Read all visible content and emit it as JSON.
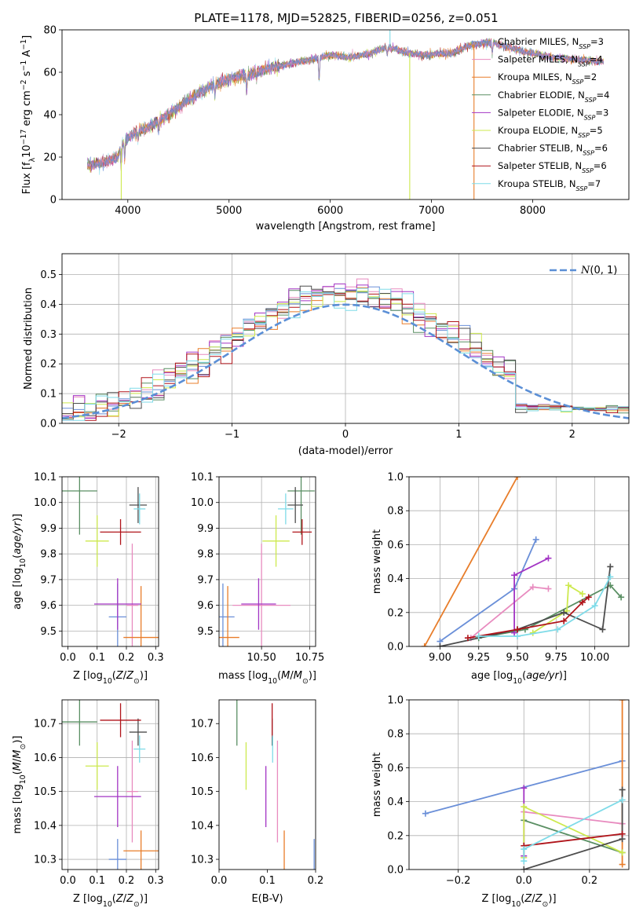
{
  "figure": {
    "title": "PLATE=1178, MJD=52825, FIBERID=0256, z=0.051"
  },
  "models": [
    {
      "name": "Chabrier MILES, N_SSP=3",
      "label_main": "Chabrier MILES, N",
      "sub": "SSP",
      "label_tail": "=3",
      "color": "#6a8fd8"
    },
    {
      "name": "Salpeter MILES, N_SSP=4",
      "label_main": "Salpeter MILES, N",
      "sub": "SSP",
      "label_tail": "=4",
      "color": "#e88bbf"
    },
    {
      "name": "Kroupa MILES, N_SSP=2",
      "label_main": "Kroupa MILES, N",
      "sub": "SSP",
      "label_tail": "=2",
      "color": "#e87d2a"
    },
    {
      "name": "Chabrier ELODIE, N_SSP=4",
      "label_main": "Chabrier ELODIE, N",
      "sub": "SSP",
      "label_tail": "=4",
      "color": "#5a8f63"
    },
    {
      "name": "Salpeter ELODIE, N_SSP=3",
      "label_main": "Salpeter ELODIE, N",
      "sub": "SSP",
      "label_tail": "=3",
      "color": "#a335c4"
    },
    {
      "name": "Kroupa ELODIE, N_SSP=5",
      "label_main": "Kroupa ELODIE, N",
      "sub": "SSP",
      "label_tail": "=5",
      "color": "#cde94e"
    },
    {
      "name": "Chabrier STELIB, N_SSP=6",
      "label_main": "Chabrier STELIB, N",
      "sub": "SSP",
      "label_tail": "=6",
      "color": "#4d4d4d"
    },
    {
      "name": "Salpeter STELIB, N_SSP=6",
      "label_main": "Salpeter STELIB, N",
      "sub": "SSP",
      "label_tail": "=6",
      "color": "#b0141a"
    },
    {
      "name": "Kroupa STELIB, N_SSP=7",
      "label_main": "Kroupa STELIB, N",
      "sub": "SSP",
      "label_tail": "=7",
      "color": "#7fdbe8"
    }
  ],
  "chart_data": [
    {
      "id": "spectrum",
      "type": "line",
      "xlabel": "wavelength [Angstrom, rest frame]",
      "ylabel": "Flux [f_λ 10^-17 erg cm^-2 s^-1 A^-1]",
      "xlim": [
        3350,
        8950
      ],
      "ylim": [
        0,
        80
      ],
      "xticks": [
        4000,
        5000,
        6000,
        7000,
        8000
      ],
      "yticks": [
        0,
        20,
        40,
        60,
        80
      ],
      "legend_placement": "right",
      "continuum_nodes": [
        [
          3600,
          16
        ],
        [
          3700,
          17
        ],
        [
          3800,
          18
        ],
        [
          3900,
          20
        ],
        [
          3960,
          27
        ],
        [
          4050,
          31
        ],
        [
          4200,
          34
        ],
        [
          4400,
          40
        ],
        [
          4600,
          47
        ],
        [
          4800,
          53
        ],
        [
          5000,
          57
        ],
        [
          5200,
          59
        ],
        [
          5400,
          62
        ],
        [
          5600,
          64
        ],
        [
          5800,
          66
        ],
        [
          6000,
          68
        ],
        [
          6200,
          67
        ],
        [
          6400,
          69
        ],
        [
          6563,
          72
        ],
        [
          6700,
          70
        ],
        [
          6900,
          68
        ],
        [
          7200,
          69
        ],
        [
          7400,
          73
        ],
        [
          7600,
          74
        ],
        [
          7900,
          70
        ],
        [
          8200,
          67
        ],
        [
          8700,
          65
        ]
      ],
      "spikes": [
        {
          "series": 5,
          "x": 3935,
          "y": 0
        },
        {
          "series": 5,
          "x": 6785,
          "y": 0
        },
        {
          "series": 2,
          "x": 7420,
          "y": 0
        },
        {
          "series": 8,
          "x": 6590,
          "y": 80
        }
      ]
    },
    {
      "id": "residual_hist",
      "type": "bar",
      "xlabel": "(data-model)/error",
      "ylabel": "Normed distribution",
      "xlim": [
        -2.5,
        2.5
      ],
      "ylim": [
        0,
        0.57
      ],
      "xticks": [
        -2,
        -1,
        0,
        1,
        2
      ],
      "yticks": [
        0,
        0.1,
        0.2,
        0.3,
        0.4,
        0.5
      ],
      "bin_width": 0.1,
      "reference": {
        "label": "N(0,1)",
        "mean": 0,
        "sigma": 1,
        "color": "#5b8fd6"
      },
      "grid": true
    },
    {
      "id": "age_vs_Z",
      "type": "scatter",
      "xlabel": "Z [log10(Z/Z⊙)]",
      "ylabel": "age [log10(age/yr)]",
      "xlim": [
        -0.02,
        0.31
      ],
      "ylim": [
        9.44,
        10.1
      ],
      "xticks": [
        0.0,
        0.1,
        0.2,
        0.3
      ],
      "yticks": [
        9.5,
        9.6,
        9.7,
        9.8,
        9.9,
        10.0,
        10.1
      ],
      "grid": true
    },
    {
      "id": "age_vs_mass",
      "type": "scatter",
      "xlabel": "mass [log10(M/M⊙)]",
      "ylabel": "",
      "xlim": [
        10.28,
        10.78
      ],
      "ylim": [
        9.44,
        10.1
      ],
      "xticks": [
        10.5,
        10.75
      ],
      "yticks": [
        9.5,
        9.6,
        9.7,
        9.8,
        9.9,
        10.0,
        10.1
      ],
      "grid": true
    },
    {
      "id": "massweight_vs_age",
      "type": "line",
      "xlabel": "age [log10(age/yr)]",
      "ylabel": "mass weight",
      "xlim": [
        8.8,
        10.22
      ],
      "ylim": [
        0,
        1.0
      ],
      "xticks": [
        9.0,
        9.25,
        9.5,
        9.75,
        10.0
      ],
      "yticks": [
        0,
        0.2,
        0.4,
        0.6,
        0.8,
        1.0
      ],
      "grid": true
    },
    {
      "id": "mass_vs_Z",
      "type": "scatter",
      "xlabel": "Z [log10(Z/Z⊙)]",
      "ylabel": "mass [log10(M/M⊙)]",
      "xlim": [
        -0.02,
        0.31
      ],
      "ylim": [
        10.27,
        10.77
      ],
      "xticks": [
        0.0,
        0.1,
        0.2,
        0.3
      ],
      "yticks": [
        10.3,
        10.4,
        10.5,
        10.6,
        10.7
      ],
      "grid": true
    },
    {
      "id": "mass_vs_EBV",
      "type": "scatter",
      "xlabel": "E(B-V)",
      "ylabel": "",
      "xlim": [
        0.0,
        0.2
      ],
      "ylim": [
        10.27,
        10.77
      ],
      "xticks": [
        0.0,
        0.1,
        0.2
      ],
      "yticks": [
        10.3,
        10.4,
        10.5,
        10.6,
        10.7
      ],
      "grid": false
    },
    {
      "id": "massweight_vs_Z",
      "type": "line",
      "xlabel": "Z [log10(Z/Z⊙)]",
      "ylabel": "mass weight",
      "xlim": [
        -0.35,
        0.32
      ],
      "ylim": [
        0,
        1.0
      ],
      "xticks": [
        -0.2,
        0.0,
        0.2
      ],
      "yticks": [
        0,
        0.2,
        0.4,
        0.6,
        0.8,
        1.0
      ],
      "grid": true
    }
  ],
  "fits": [
    {
      "Z": 0.17,
      "Z_err": 0.03,
      "age": 9.555,
      "age_err": 0.13,
      "mass": 10.3,
      "mass_err": 0.06,
      "ebv": 0.197,
      "ebv_err": 0.0,
      "ssp_age": [
        [
          9.0,
          0.03
        ],
        [
          9.48,
          0.34
        ],
        [
          9.62,
          0.63
        ]
      ],
      "ssp_Z": [
        [
          -0.3,
          0.33
        ],
        [
          0.3,
          0.64
        ]
      ]
    },
    {
      "Z": 0.22,
      "Z_err": 0.02,
      "age": 9.6,
      "age_err": 0.24,
      "mass": 10.5,
      "mass_err": 0.15,
      "ebv": 0.121,
      "ebv_err": 0.0,
      "ssp_age": [
        [
          9.2,
          0.05
        ],
        [
          9.6,
          0.35
        ],
        [
          9.7,
          0.34
        ]
      ],
      "ssp_Z": [
        [
          0.0,
          0.34
        ],
        [
          0.3,
          0.27
        ]
      ]
    },
    {
      "Z": 0.25,
      "Z_err": 0.06,
      "age": 9.475,
      "age_err": 0.2,
      "mass": 10.325,
      "mass_err": 0.06,
      "ebv": 0.135,
      "ebv_err": 0.0,
      "ssp_age": [
        [
          8.9,
          0.0
        ],
        [
          9.5,
          1.0
        ]
      ],
      "ssp_Z": [
        [
          0.3,
          0.03
        ],
        [
          0.3,
          1.0
        ]
      ]
    },
    {
      "Z": 0.04,
      "Z_err": 0.06,
      "age": 10.045,
      "age_err": 0.17,
      "mass": 10.705,
      "mass_err": 0.07,
      "ebv": 0.037,
      "ebv_err": 0.0,
      "ssp_age": [
        [
          9.25,
          0.05
        ],
        [
          9.55,
          0.1
        ],
        [
          10.1,
          0.36
        ],
        [
          10.17,
          0.29
        ]
      ],
      "ssp_Z": [
        [
          0.0,
          0.29
        ],
        [
          0.3,
          0.1
        ]
      ]
    },
    {
      "Z": 0.17,
      "Z_err": 0.08,
      "age": 9.605,
      "age_err": 0.1,
      "mass": 10.485,
      "mass_err": 0.09,
      "ebv": 0.097,
      "ebv_err": 0.0,
      "ssp_age": [
        [
          9.48,
          0.08
        ],
        [
          9.48,
          0.42
        ],
        [
          9.7,
          0.52
        ]
      ],
      "ssp_Z": [
        [
          0.0,
          0.08
        ],
        [
          0.0,
          0.48
        ]
      ]
    },
    {
      "Z": 0.1,
      "Z_err": 0.04,
      "age": 9.85,
      "age_err": 0.1,
      "mass": 10.575,
      "mass_err": 0.07,
      "ebv": 0.056,
      "ebv_err": 0.0,
      "ssp_age": [
        [
          9.6,
          0.08
        ],
        [
          9.82,
          0.21
        ],
        [
          9.83,
          0.36
        ],
        [
          9.92,
          0.31
        ]
      ],
      "ssp_Z": [
        [
          0.0,
          0.07
        ],
        [
          0.0,
          0.37
        ],
        [
          0.3,
          0.1
        ]
      ]
    },
    {
      "Z": 0.24,
      "Z_err": 0.03,
      "age": 9.99,
      "age_err": 0.07,
      "mass": 10.675,
      "mass_err": 0.04,
      "ebv": 0.11,
      "ebv_err": 0.0,
      "ssp_age": [
        [
          9.0,
          0.0
        ],
        [
          9.5,
          0.1
        ],
        [
          9.8,
          0.2
        ],
        [
          10.05,
          0.1
        ],
        [
          10.1,
          0.47
        ]
      ],
      "ssp_Z": [
        [
          0.0,
          0.0
        ],
        [
          0.3,
          0.18
        ],
        [
          0.3,
          0.47
        ]
      ]
    },
    {
      "Z": 0.18,
      "Z_err": 0.07,
      "age": 9.885,
      "age_err": 0.05,
      "mass": 10.71,
      "mass_err": 0.05,
      "ebv": 0.11,
      "ebv_err": 0.0,
      "ssp_age": [
        [
          9.18,
          0.05
        ],
        [
          9.5,
          0.1
        ],
        [
          9.8,
          0.15
        ],
        [
          9.92,
          0.26
        ],
        [
          9.96,
          0.29
        ]
      ],
      "ssp_Z": [
        [
          0.0,
          0.14
        ],
        [
          0.3,
          0.21
        ]
      ]
    },
    {
      "Z": 0.245,
      "Z_err": 0.02,
      "age": 9.975,
      "age_err": 0.06,
      "mass": 10.625,
      "mass_err": 0.04,
      "ebv": 0.111,
      "ebv_err": 0.0,
      "ssp_age": [
        [
          9.25,
          0.06
        ],
        [
          9.5,
          0.06
        ],
        [
          9.76,
          0.1
        ],
        [
          10.0,
          0.24
        ],
        [
          10.1,
          0.41
        ]
      ],
      "ssp_Z": [
        [
          0.0,
          0.05
        ],
        [
          0.0,
          0.12
        ],
        [
          0.3,
          0.41
        ]
      ]
    }
  ]
}
